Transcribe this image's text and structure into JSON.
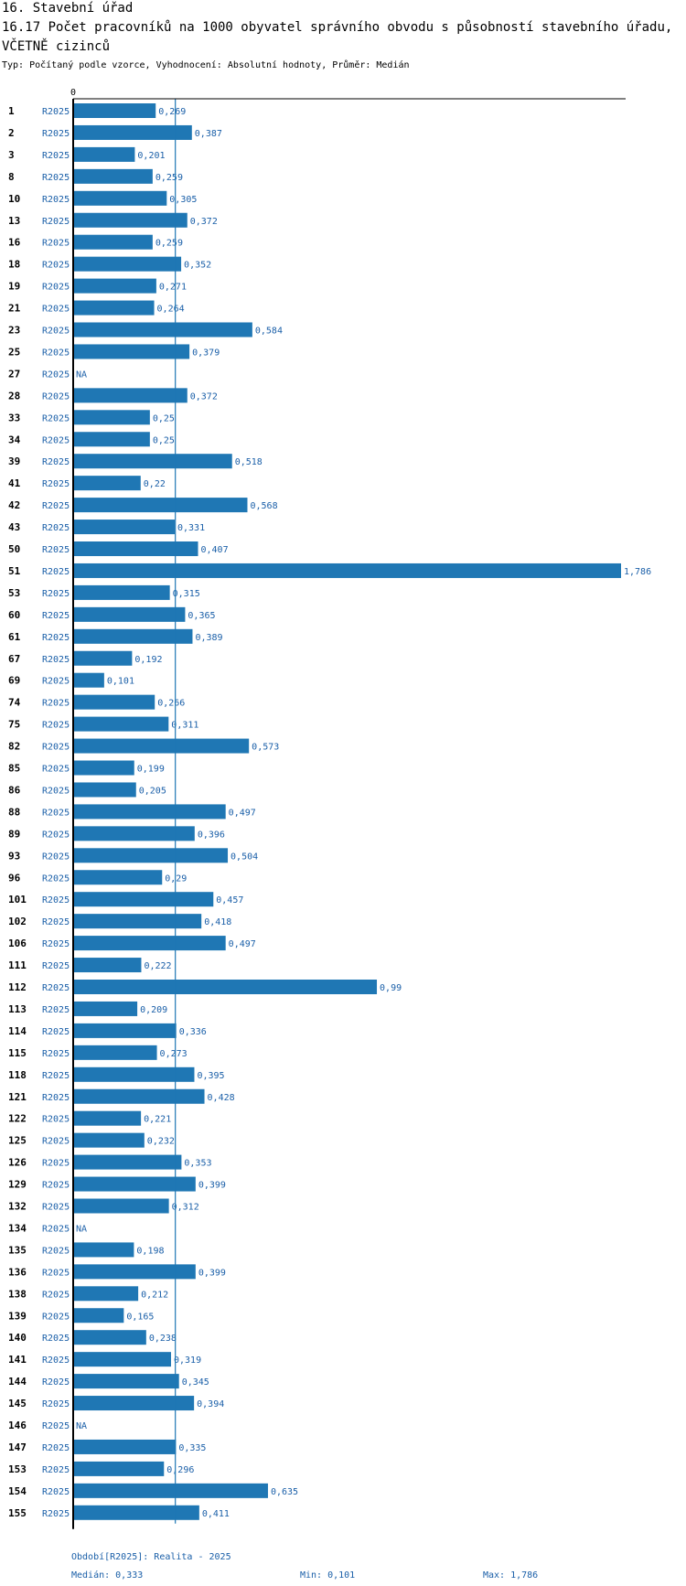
{
  "header": {
    "section": "16. Stavební úřad",
    "title": "16.17 Počet pracovníků na 1000 obyvatel správního obvodu s působností stavebního úřadu, VČETNĚ cizinců",
    "meta": "Typ: Počítaný podle vzorce, Vyhodnocení: Absolutní hodnoty, Průměr: Medián"
  },
  "footer": {
    "period": "Období[R2025]: Realita - 2025",
    "median": "Medián: 0,333",
    "min": "Min: 0,101",
    "max": "Max: 1,786"
  },
  "colors": {
    "bar": "#1f77b4",
    "label": "#1a5fa8",
    "median_line": "#1f77b4"
  },
  "chart_data": {
    "type": "bar",
    "orientation": "horizontal",
    "axis_zero_label": "0",
    "series_label": "R2025",
    "median": 0.333,
    "xlim": [
      0,
      1.786
    ],
    "rows": [
      {
        "id": "1",
        "value": 0.269,
        "label": "0,269"
      },
      {
        "id": "2",
        "value": 0.387,
        "label": "0,387"
      },
      {
        "id": "3",
        "value": 0.201,
        "label": "0,201"
      },
      {
        "id": "8",
        "value": 0.259,
        "label": "0,259"
      },
      {
        "id": "10",
        "value": 0.305,
        "label": "0,305"
      },
      {
        "id": "13",
        "value": 0.372,
        "label": "0,372"
      },
      {
        "id": "16",
        "value": 0.259,
        "label": "0,259"
      },
      {
        "id": "18",
        "value": 0.352,
        "label": "0,352"
      },
      {
        "id": "19",
        "value": 0.271,
        "label": "0,271"
      },
      {
        "id": "21",
        "value": 0.264,
        "label": "0,264"
      },
      {
        "id": "23",
        "value": 0.584,
        "label": "0,584"
      },
      {
        "id": "25",
        "value": 0.379,
        "label": "0,379"
      },
      {
        "id": "27",
        "value": null,
        "label": "NA"
      },
      {
        "id": "28",
        "value": 0.372,
        "label": "0,372"
      },
      {
        "id": "33",
        "value": 0.25,
        "label": "0,25"
      },
      {
        "id": "34",
        "value": 0.25,
        "label": "0,25"
      },
      {
        "id": "39",
        "value": 0.518,
        "label": "0,518"
      },
      {
        "id": "41",
        "value": 0.22,
        "label": "0,22"
      },
      {
        "id": "42",
        "value": 0.568,
        "label": "0,568"
      },
      {
        "id": "43",
        "value": 0.331,
        "label": "0,331"
      },
      {
        "id": "50",
        "value": 0.407,
        "label": "0,407"
      },
      {
        "id": "51",
        "value": 1.786,
        "label": "1,786"
      },
      {
        "id": "53",
        "value": 0.315,
        "label": "0,315"
      },
      {
        "id": "60",
        "value": 0.365,
        "label": "0,365"
      },
      {
        "id": "61",
        "value": 0.389,
        "label": "0,389"
      },
      {
        "id": "67",
        "value": 0.192,
        "label": "0,192"
      },
      {
        "id": "69",
        "value": 0.101,
        "label": "0,101"
      },
      {
        "id": "74",
        "value": 0.266,
        "label": "0,266"
      },
      {
        "id": "75",
        "value": 0.311,
        "label": "0,311"
      },
      {
        "id": "82",
        "value": 0.573,
        "label": "0,573"
      },
      {
        "id": "85",
        "value": 0.199,
        "label": "0,199"
      },
      {
        "id": "86",
        "value": 0.205,
        "label": "0,205"
      },
      {
        "id": "88",
        "value": 0.497,
        "label": "0,497"
      },
      {
        "id": "89",
        "value": 0.396,
        "label": "0,396"
      },
      {
        "id": "93",
        "value": 0.504,
        "label": "0,504"
      },
      {
        "id": "96",
        "value": 0.29,
        "label": "0,29"
      },
      {
        "id": "101",
        "value": 0.457,
        "label": "0,457"
      },
      {
        "id": "102",
        "value": 0.418,
        "label": "0,418"
      },
      {
        "id": "106",
        "value": 0.497,
        "label": "0,497"
      },
      {
        "id": "111",
        "value": 0.222,
        "label": "0,222"
      },
      {
        "id": "112",
        "value": 0.99,
        "label": "0,99"
      },
      {
        "id": "113",
        "value": 0.209,
        "label": "0,209"
      },
      {
        "id": "114",
        "value": 0.336,
        "label": "0,336"
      },
      {
        "id": "115",
        "value": 0.273,
        "label": "0,273"
      },
      {
        "id": "118",
        "value": 0.395,
        "label": "0,395"
      },
      {
        "id": "121",
        "value": 0.428,
        "label": "0,428"
      },
      {
        "id": "122",
        "value": 0.221,
        "label": "0,221"
      },
      {
        "id": "125",
        "value": 0.232,
        "label": "0,232"
      },
      {
        "id": "126",
        "value": 0.353,
        "label": "0,353"
      },
      {
        "id": "129",
        "value": 0.399,
        "label": "0,399"
      },
      {
        "id": "132",
        "value": 0.312,
        "label": "0,312"
      },
      {
        "id": "134",
        "value": null,
        "label": "NA"
      },
      {
        "id": "135",
        "value": 0.198,
        "label": "0,198"
      },
      {
        "id": "136",
        "value": 0.399,
        "label": "0,399"
      },
      {
        "id": "138",
        "value": 0.212,
        "label": "0,212"
      },
      {
        "id": "139",
        "value": 0.165,
        "label": "0,165"
      },
      {
        "id": "140",
        "value": 0.238,
        "label": "0,238"
      },
      {
        "id": "141",
        "value": 0.319,
        "label": "0,319"
      },
      {
        "id": "144",
        "value": 0.345,
        "label": "0,345"
      },
      {
        "id": "145",
        "value": 0.394,
        "label": "0,394"
      },
      {
        "id": "146",
        "value": null,
        "label": "NA"
      },
      {
        "id": "147",
        "value": 0.335,
        "label": "0,335"
      },
      {
        "id": "153",
        "value": 0.296,
        "label": "0,296"
      },
      {
        "id": "154",
        "value": 0.635,
        "label": "0,635"
      },
      {
        "id": "155",
        "value": 0.411,
        "label": "0,411"
      }
    ]
  }
}
